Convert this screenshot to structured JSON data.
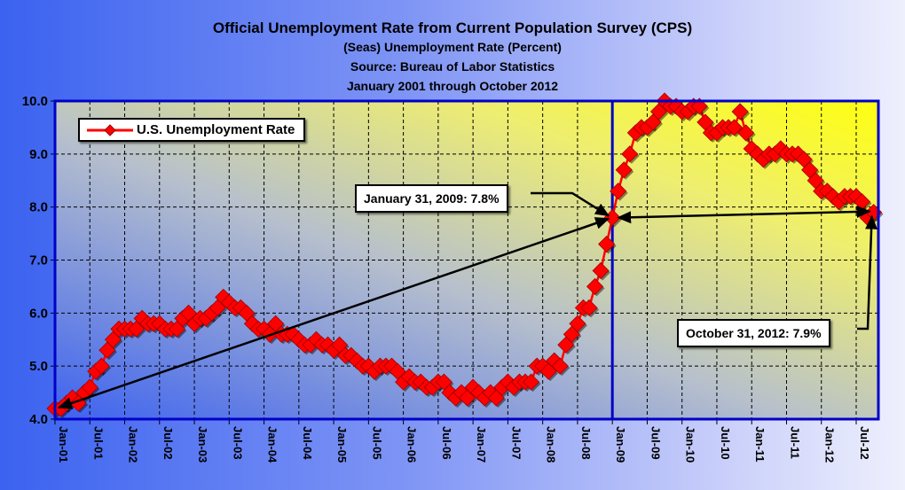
{
  "chart_data": {
    "type": "line",
    "title": "Official Unemployment Rate from Current Population Survey (CPS)",
    "subtitles": [
      "(Seas) Unemployment Rate (Percent)",
      "Source: Bureau of Labor Statistics",
      "January 2001 through October 2012"
    ],
    "xlabel": "",
    "ylabel": "",
    "ylim": [
      4.0,
      10.0
    ],
    "yticks": [
      "4.0",
      "5.0",
      "6.0",
      "7.0",
      "8.0",
      "9.0",
      "10.0"
    ],
    "xticks": [
      "Jan-01",
      "Jul-01",
      "Jan-02",
      "Jul-02",
      "Jan-03",
      "Jul-03",
      "Jan-04",
      "Jul-04",
      "Jan-05",
      "Jul-05",
      "Jan-06",
      "Jul-06",
      "Jan-07",
      "Jul-07",
      "Jan-08",
      "Jul-08",
      "Jan-09",
      "Jul-09",
      "Jan-10",
      "Jul-10",
      "Jan-11",
      "Jul-11",
      "Jan-12",
      "Jul-12"
    ],
    "grid": true,
    "legend": {
      "position": "top-left",
      "entries": [
        "U.S. Unemployment Rate"
      ]
    },
    "series": [
      {
        "name": "U.S. Unemployment Rate",
        "start": "Jan-01",
        "frequency": "monthly",
        "color": "#ff0000",
        "values": [
          4.2,
          4.2,
          4.3,
          4.4,
          4.3,
          4.5,
          4.6,
          4.9,
          5.0,
          5.3,
          5.5,
          5.7,
          5.7,
          5.7,
          5.7,
          5.9,
          5.8,
          5.8,
          5.8,
          5.7,
          5.7,
          5.7,
          5.9,
          6.0,
          5.8,
          5.9,
          5.9,
          6.0,
          6.1,
          6.3,
          6.2,
          6.1,
          6.1,
          6.0,
          5.8,
          5.7,
          5.7,
          5.6,
          5.8,
          5.6,
          5.6,
          5.6,
          5.5,
          5.4,
          5.4,
          5.5,
          5.4,
          5.4,
          5.3,
          5.4,
          5.2,
          5.2,
          5.1,
          5.0,
          5.0,
          4.9,
          5.0,
          5.0,
          5.0,
          4.9,
          4.7,
          4.8,
          4.7,
          4.7,
          4.6,
          4.6,
          4.7,
          4.7,
          4.5,
          4.4,
          4.5,
          4.4,
          4.6,
          4.5,
          4.4,
          4.5,
          4.4,
          4.6,
          4.7,
          4.6,
          4.7,
          4.7,
          4.7,
          5.0,
          5.0,
          4.9,
          5.1,
          5.0,
          5.4,
          5.6,
          5.8,
          6.1,
          6.1,
          6.5,
          6.8,
          7.3,
          7.8,
          8.3,
          8.7,
          9.0,
          9.4,
          9.5,
          9.5,
          9.6,
          9.8,
          10.0,
          9.9,
          9.9,
          9.8,
          9.8,
          9.9,
          9.9,
          9.6,
          9.4,
          9.4,
          9.5,
          9.5,
          9.5,
          9.8,
          9.4,
          9.1,
          9.0,
          8.9,
          9.0,
          9.0,
          9.1,
          9.0,
          9.0,
          9.0,
          8.9,
          8.7,
          8.5,
          8.3,
          8.3,
          8.2,
          8.1,
          8.2,
          8.2,
          8.2,
          8.1,
          7.8,
          7.9
        ]
      }
    ],
    "annotations": [
      {
        "text": "January 31, 2009:  7.8%",
        "month_index": 96,
        "value": 7.8
      },
      {
        "text": "October 31, 2012:  7.9%",
        "month_index": 141,
        "value": 7.9
      }
    ],
    "reference_line": {
      "month_index": 96,
      "label": "Jan-09"
    }
  }
}
